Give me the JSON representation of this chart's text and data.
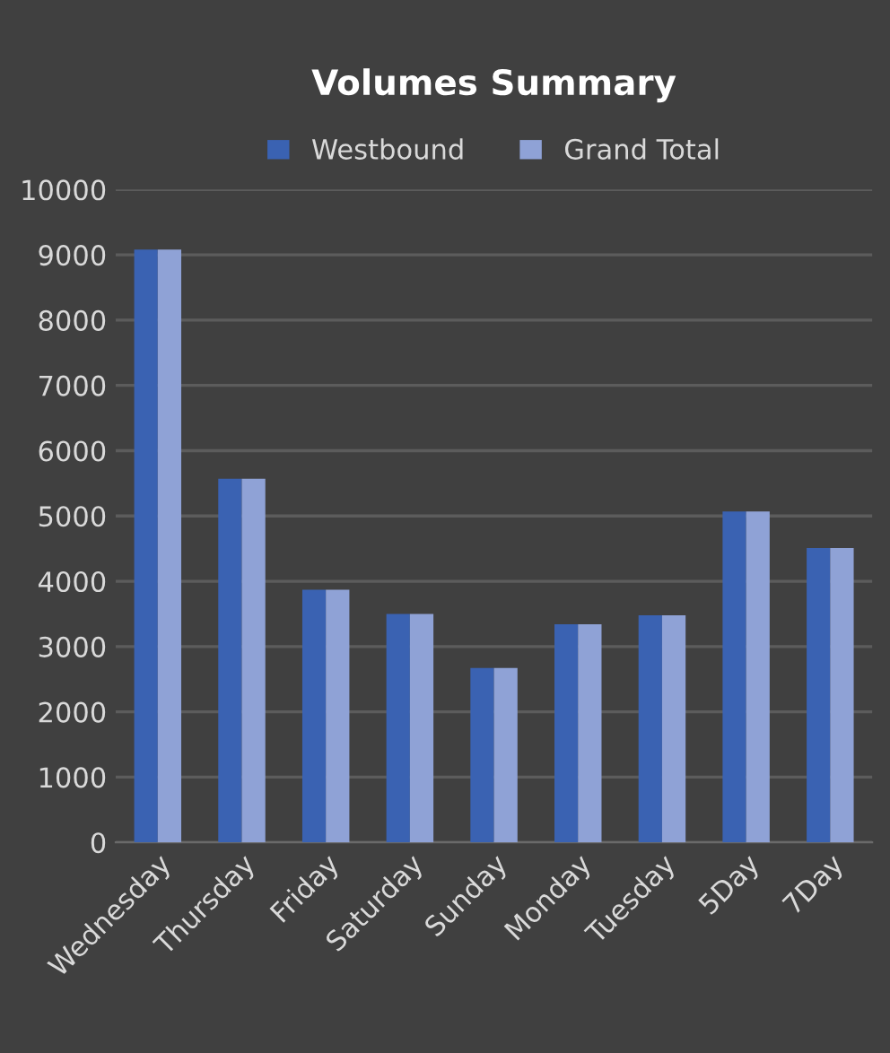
{
  "chart_data": {
    "type": "bar",
    "title": "Volumes Summary",
    "categories": [
      "Wednesday",
      "Thursday",
      "Friday",
      "Saturday",
      "Sunday",
      "Monday",
      "Tuesday",
      "5Day",
      "7Day"
    ],
    "series": [
      {
        "name": "Westbound",
        "color": "#3a62b2",
        "values": [
          9080,
          5570,
          3870,
          3500,
          2670,
          3340,
          3480,
          5070,
          4510
        ]
      },
      {
        "name": "Grand Total",
        "color": "#8fa2d6",
        "values": [
          9080,
          5570,
          3870,
          3500,
          2670,
          3340,
          3480,
          5070,
          4510
        ]
      }
    ],
    "ylim": [
      0,
      10000
    ],
    "yticks": [
      0,
      1000,
      2000,
      3000,
      4000,
      5000,
      6000,
      7000,
      8000,
      9000,
      10000
    ],
    "grid": "y",
    "legend": "top"
  }
}
